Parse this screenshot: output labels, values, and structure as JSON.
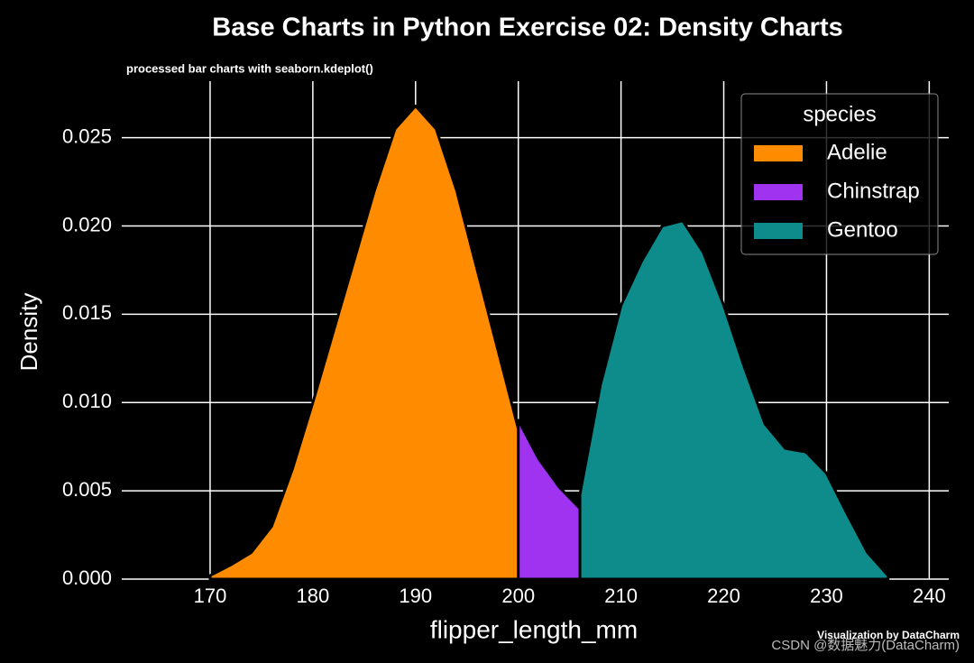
{
  "chart_data": {
    "type": "density",
    "title": "Base Charts in Python Exercise 02: Density Charts",
    "subtitle": "processed bar charts with seaborn.kdeplot()",
    "xlabel": "flipper_length_mm",
    "ylabel": "Density",
    "caption": "Visualization by DataCharm",
    "watermark": "CSDN @数据魅力(DataCharm)",
    "legend_title": "species",
    "legend": "upper right",
    "grid": true,
    "x": [
      170,
      172,
      174,
      176,
      178,
      180,
      182,
      184,
      186,
      188,
      190,
      192,
      194,
      196,
      198,
      200,
      202,
      204,
      206,
      208,
      210,
      212,
      214,
      216,
      218,
      220,
      222,
      224,
      226,
      228,
      230,
      232,
      234,
      236
    ],
    "series": [
      {
        "name": "Adelie",
        "color": "#ff8c00",
        "values": [
          0.0002,
          0.0008,
          0.0015,
          0.003,
          0.0062,
          0.01,
          0.014,
          0.018,
          0.022,
          0.0255,
          0.0268,
          0.0255,
          0.022,
          0.0175,
          0.013,
          0.0085,
          0.0055,
          0.0035,
          0.002,
          0.0012,
          0.0008,
          0.0004,
          0.0001,
          null,
          null,
          null,
          null,
          null,
          null,
          null,
          null,
          null,
          null,
          null
        ]
      },
      {
        "name": "Chinstrap",
        "color": "#a033f0",
        "values": [
          null,
          null,
          null,
          null,
          null,
          null,
          null,
          null,
          null,
          null,
          null,
          null,
          null,
          null,
          null,
          0.009,
          0.0068,
          0.0052,
          0.004,
          0.003,
          0.0023,
          0.0016,
          0.0009,
          0.0002,
          null,
          null,
          null,
          null,
          null,
          null,
          null,
          null,
          null,
          null
        ]
      },
      {
        "name": "Gentoo",
        "color": "#0e8c8c",
        "values": [
          null,
          null,
          null,
          null,
          null,
          null,
          null,
          null,
          null,
          null,
          null,
          null,
          null,
          null,
          null,
          null,
          null,
          null,
          0.0048,
          0.011,
          0.0155,
          0.018,
          0.02,
          0.0203,
          0.0185,
          0.0155,
          0.012,
          0.0088,
          0.0074,
          0.0072,
          0.006,
          0.0037,
          0.0015,
          0.0002
        ]
      }
    ],
    "xlim": [
      161.4,
      241.9
    ],
    "xticks": [
      170,
      180,
      190,
      200,
      210,
      220,
      230,
      240
    ],
    "ylim": [
      0,
      0.0282
    ],
    "yticks": [
      {
        "value": 0,
        "label": "0.000"
      },
      {
        "value": 0.005,
        "label": "0.005"
      },
      {
        "value": 0.01,
        "label": "0.010"
      },
      {
        "value": 0.015,
        "label": "0.015"
      },
      {
        "value": 0.02,
        "label": "0.020"
      },
      {
        "value": 0.025,
        "label": "0.025"
      }
    ]
  }
}
